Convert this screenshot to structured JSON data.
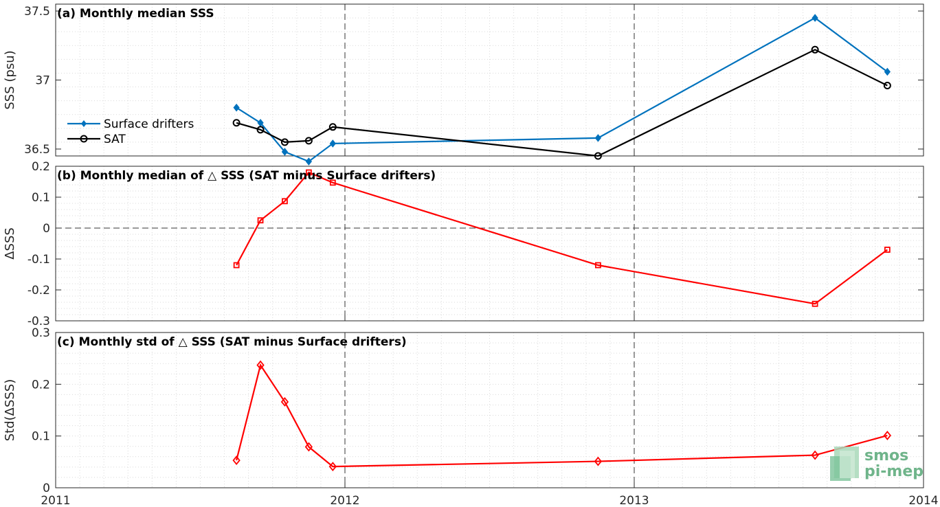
{
  "chart_data": [
    {
      "type": "line",
      "title": "(a) Monthly median SSS",
      "xlabel": "",
      "ylabel": "SSS (psu)",
      "xlim": [
        2011,
        2014
      ],
      "ylim": [
        36.45,
        37.55
      ],
      "yticks": [
        36.5,
        37,
        37.5
      ],
      "ytick_labels": [
        "36.5",
        "37",
        "37.5"
      ],
      "grid": true,
      "legend": "center-left",
      "series": [
        {
          "name": "Surface drifters",
          "color": "#0072bd",
          "marker": "diamond-filled",
          "x": [
            2011.625,
            2011.708,
            2011.792,
            2011.875,
            2011.958,
            2012.875,
            2013.625,
            2013.875
          ],
          "values": [
            36.8,
            36.69,
            36.48,
            36.41,
            36.54,
            36.58,
            37.45,
            37.06
          ]
        },
        {
          "name": "SAT",
          "color": "#000000",
          "marker": "circle-open",
          "x": [
            2011.625,
            2011.708,
            2011.792,
            2011.875,
            2011.958,
            2012.875,
            2013.625,
            2013.875
          ],
          "values": [
            36.69,
            36.64,
            36.55,
            36.56,
            36.66,
            36.45,
            37.22,
            36.96
          ]
        }
      ]
    },
    {
      "type": "line",
      "title": "(b) Monthly median of △ SSS (SAT minus Surface drifters)",
      "xlabel": "",
      "ylabel": "ΔSSS",
      "xlim": [
        2011,
        2014
      ],
      "ylim": [
        -0.3,
        0.2
      ],
      "yticks": [
        -0.3,
        -0.2,
        -0.1,
        0,
        0.1,
        0.2
      ],
      "ytick_labels": [
        "-0.3",
        "-0.2",
        "-0.1",
        "0",
        "0.1",
        "0.2"
      ],
      "grid": true,
      "series": [
        {
          "color": "#ff0000",
          "marker": "square-open",
          "x": [
            2011.625,
            2011.708,
            2011.792,
            2011.875,
            2011.958,
            2012.875,
            2013.625,
            2013.875
          ],
          "values": [
            -0.12,
            0.025,
            0.087,
            0.18,
            0.147,
            -0.12,
            -0.245,
            -0.07
          ]
        }
      ]
    },
    {
      "type": "line",
      "title": "(c) Monthly std of △ SSS (SAT minus Surface drifters)",
      "xlabel": "",
      "ylabel": "Std(ΔSSS)",
      "xlim": [
        2011,
        2014
      ],
      "ylim": [
        0,
        0.3
      ],
      "yticks": [
        0,
        0.1,
        0.2,
        0.3
      ],
      "ytick_labels": [
        "0",
        "0.1",
        "0.2",
        "0.3"
      ],
      "xticks": [
        2011,
        2012,
        2013,
        2014
      ],
      "xtick_labels": [
        "2011",
        "2012",
        "2013",
        "2014"
      ],
      "grid": true,
      "series": [
        {
          "color": "#ff0000",
          "marker": "diamond-open",
          "x": [
            2011.625,
            2011.708,
            2011.792,
            2011.875,
            2011.958,
            2012.875,
            2013.625,
            2013.875
          ],
          "values": [
            0.053,
            0.237,
            0.166,
            0.079,
            0.041,
            0.051,
            0.063,
            0.101
          ]
        }
      ]
    }
  ],
  "logo": {
    "line1": "smos",
    "line2": "pi-mep",
    "color": "#6fb48a"
  }
}
